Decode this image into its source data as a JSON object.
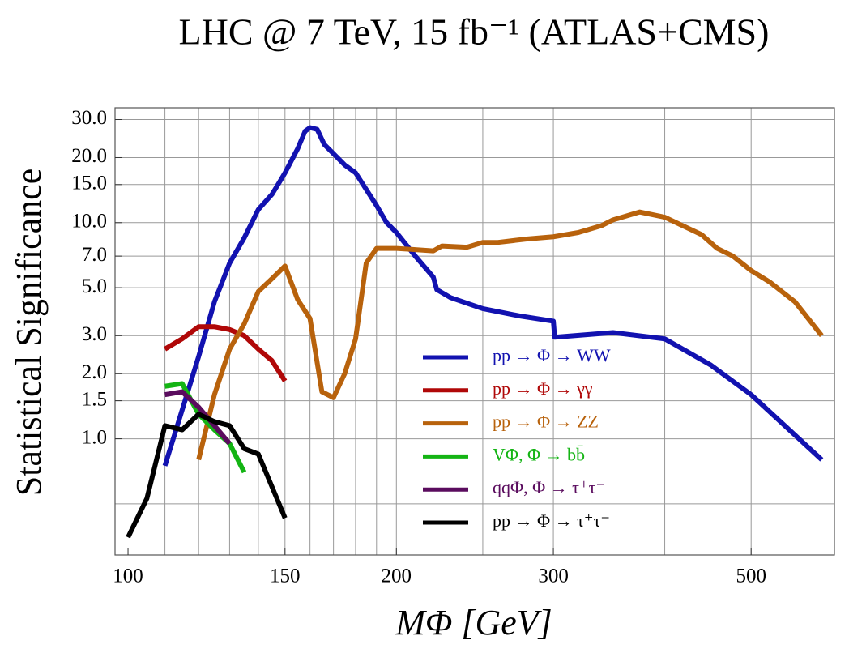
{
  "chart_data": {
    "type": "line",
    "title": "LHC @ 7 TeV, 15 fb⁻¹ (ATLAS+CMS)",
    "x_label": "MΦ [GeV]",
    "y_label": "Statistical Significance",
    "log_x": true,
    "log_y": true,
    "grid": true,
    "xlim": [
      96.7,
      620
    ],
    "ylim": [
      0.29,
      34
    ],
    "xticks": [
      100,
      150,
      200,
      300,
      500
    ],
    "yticks": [
      {
        "value": 30,
        "label": "30.0"
      },
      {
        "value": 20,
        "label": "20.0"
      },
      {
        "value": 15,
        "label": "15.0"
      },
      {
        "value": 10,
        "label": "10.0"
      },
      {
        "value": 7,
        "label": "7.0"
      },
      {
        "value": 5,
        "label": "5.0"
      },
      {
        "value": 3,
        "label": "3.0"
      },
      {
        "value": 2,
        "label": "2.0"
      },
      {
        "value": 1.5,
        "label": "1.5"
      },
      {
        "value": 1,
        "label": "1.0"
      }
    ],
    "xgrid": [
      110,
      120,
      130,
      140,
      150,
      160,
      170,
      180,
      190,
      200,
      250,
      300,
      400,
      500
    ],
    "ygrid": [
      0.5,
      1,
      1.5,
      2,
      3,
      5,
      7,
      10,
      15,
      20,
      30
    ],
    "series": [
      {
        "name": "pp → Φ → WW",
        "color": "#1212b0",
        "x": [
          110,
          120,
          125,
          130,
          135,
          140,
          145,
          148,
          150,
          155,
          158,
          160,
          163,
          166,
          175,
          180,
          190,
          195,
          200,
          210,
          220,
          222,
          230,
          250,
          275,
          300,
          301,
          350,
          400,
          450,
          500,
          600
        ],
        "values": [
          0.75,
          2.4,
          4.3,
          6.5,
          8.5,
          11.5,
          13.5,
          15.5,
          17,
          22,
          26.5,
          27.5,
          27,
          23,
          18.5,
          17,
          12,
          10,
          9,
          7,
          5.6,
          4.9,
          4.5,
          4.0,
          3.7,
          3.5,
          2.95,
          3.1,
          2.9,
          2.2,
          1.6,
          0.8
        ]
      },
      {
        "name": "pp → Φ → γγ",
        "color": "#b00808",
        "x": [
          110,
          115,
          120,
          125,
          130,
          135,
          140,
          145,
          150
        ],
        "values": [
          2.6,
          2.9,
          3.3,
          3.3,
          3.2,
          3.0,
          2.6,
          2.3,
          1.85
        ]
      },
      {
        "name": "pp → Φ → ZZ",
        "color": "#b8620c",
        "x": [
          120,
          125,
          130,
          135,
          140,
          145,
          150,
          155,
          160,
          165,
          170,
          175,
          180,
          185,
          190,
          200,
          210,
          220,
          225,
          240,
          250,
          260,
          280,
          300,
          320,
          340,
          350,
          375,
          400,
          440,
          458,
          477,
          500,
          525,
          560,
          600
        ],
        "values": [
          0.8,
          1.6,
          2.6,
          3.4,
          4.8,
          5.5,
          6.3,
          4.4,
          3.6,
          1.65,
          1.55,
          2.0,
          2.9,
          6.5,
          7.6,
          7.6,
          7.5,
          7.4,
          7.8,
          7.7,
          8.1,
          8.1,
          8.4,
          8.6,
          9.0,
          9.7,
          10.3,
          11.2,
          10.6,
          8.8,
          7.6,
          7.0,
          6.0,
          5.3,
          4.3,
          3.0
        ]
      },
      {
        "name": "VΦ, Φ → bb̄",
        "color": "#14b414",
        "x": [
          110,
          115,
          120,
          125,
          130,
          135
        ],
        "values": [
          1.75,
          1.8,
          1.3,
          1.1,
          0.95,
          0.7
        ]
      },
      {
        "name": "qqΦ, Φ → τ⁺τ⁻",
        "color": "#5a0c5e",
        "x": [
          110,
          115,
          120,
          125,
          130
        ],
        "values": [
          1.6,
          1.65,
          1.4,
          1.15,
          0.95
        ]
      },
      {
        "name": "pp → Φ → τ⁺τ⁻",
        "color": "#000000",
        "x": [
          100,
          105,
          110,
          115,
          120,
          125,
          130,
          135,
          140,
          150
        ],
        "values": [
          0.35,
          0.53,
          1.15,
          1.1,
          1.3,
          1.2,
          1.15,
          0.9,
          0.85,
          0.43
        ]
      }
    ]
  }
}
